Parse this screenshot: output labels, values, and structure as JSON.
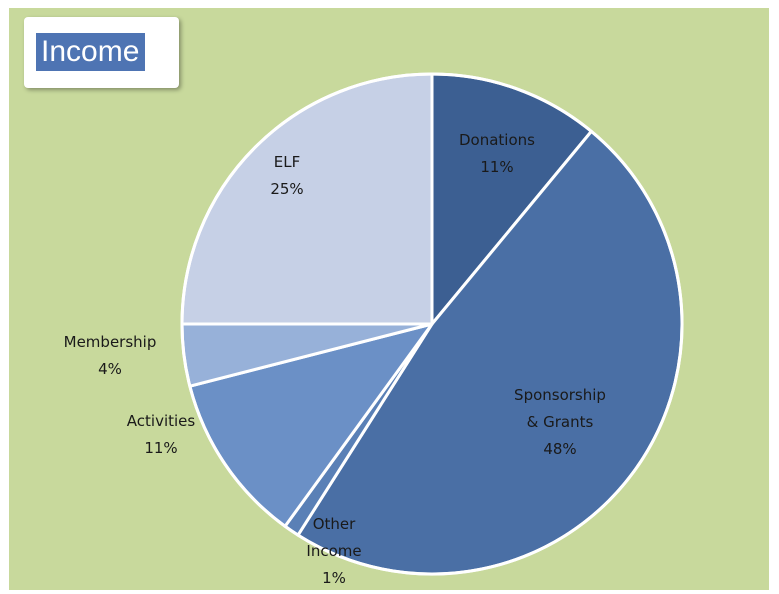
{
  "chart_data": {
    "type": "pie",
    "title": "Income",
    "start_angle_deg": 0,
    "direction": "clockwise",
    "slices": [
      {
        "name": "Donations",
        "label_lines": [
          "Donations",
          "11%"
        ],
        "value": 11,
        "color": "#3c5f92"
      },
      {
        "name": "Sponsorship & Grants",
        "label_lines": [
          "Sponsorship",
          "& Grants",
          "48%"
        ],
        "value": 48,
        "color": "#4a6fa5"
      },
      {
        "name": "Other Income",
        "label_lines": [
          "Other",
          "Income",
          "1%"
        ],
        "value": 1,
        "color": "#5a80b6"
      },
      {
        "name": "Activities",
        "label_lines": [
          "Activities",
          "11%"
        ],
        "value": 11,
        "color": "#6b90c6"
      },
      {
        "name": "Membership",
        "label_lines": [
          "Membership",
          "4%"
        ],
        "value": 4,
        "color": "#97b1d9"
      },
      {
        "name": "ELF",
        "label_lines": [
          "ELF",
          "25%"
        ],
        "value": 25,
        "color": "#c6d0e6"
      }
    ],
    "colors": {
      "background": "#c8d99c",
      "title_bg": "#4e74b3",
      "title_fg": "#ffffff",
      "separator": "#ffffff"
    }
  }
}
